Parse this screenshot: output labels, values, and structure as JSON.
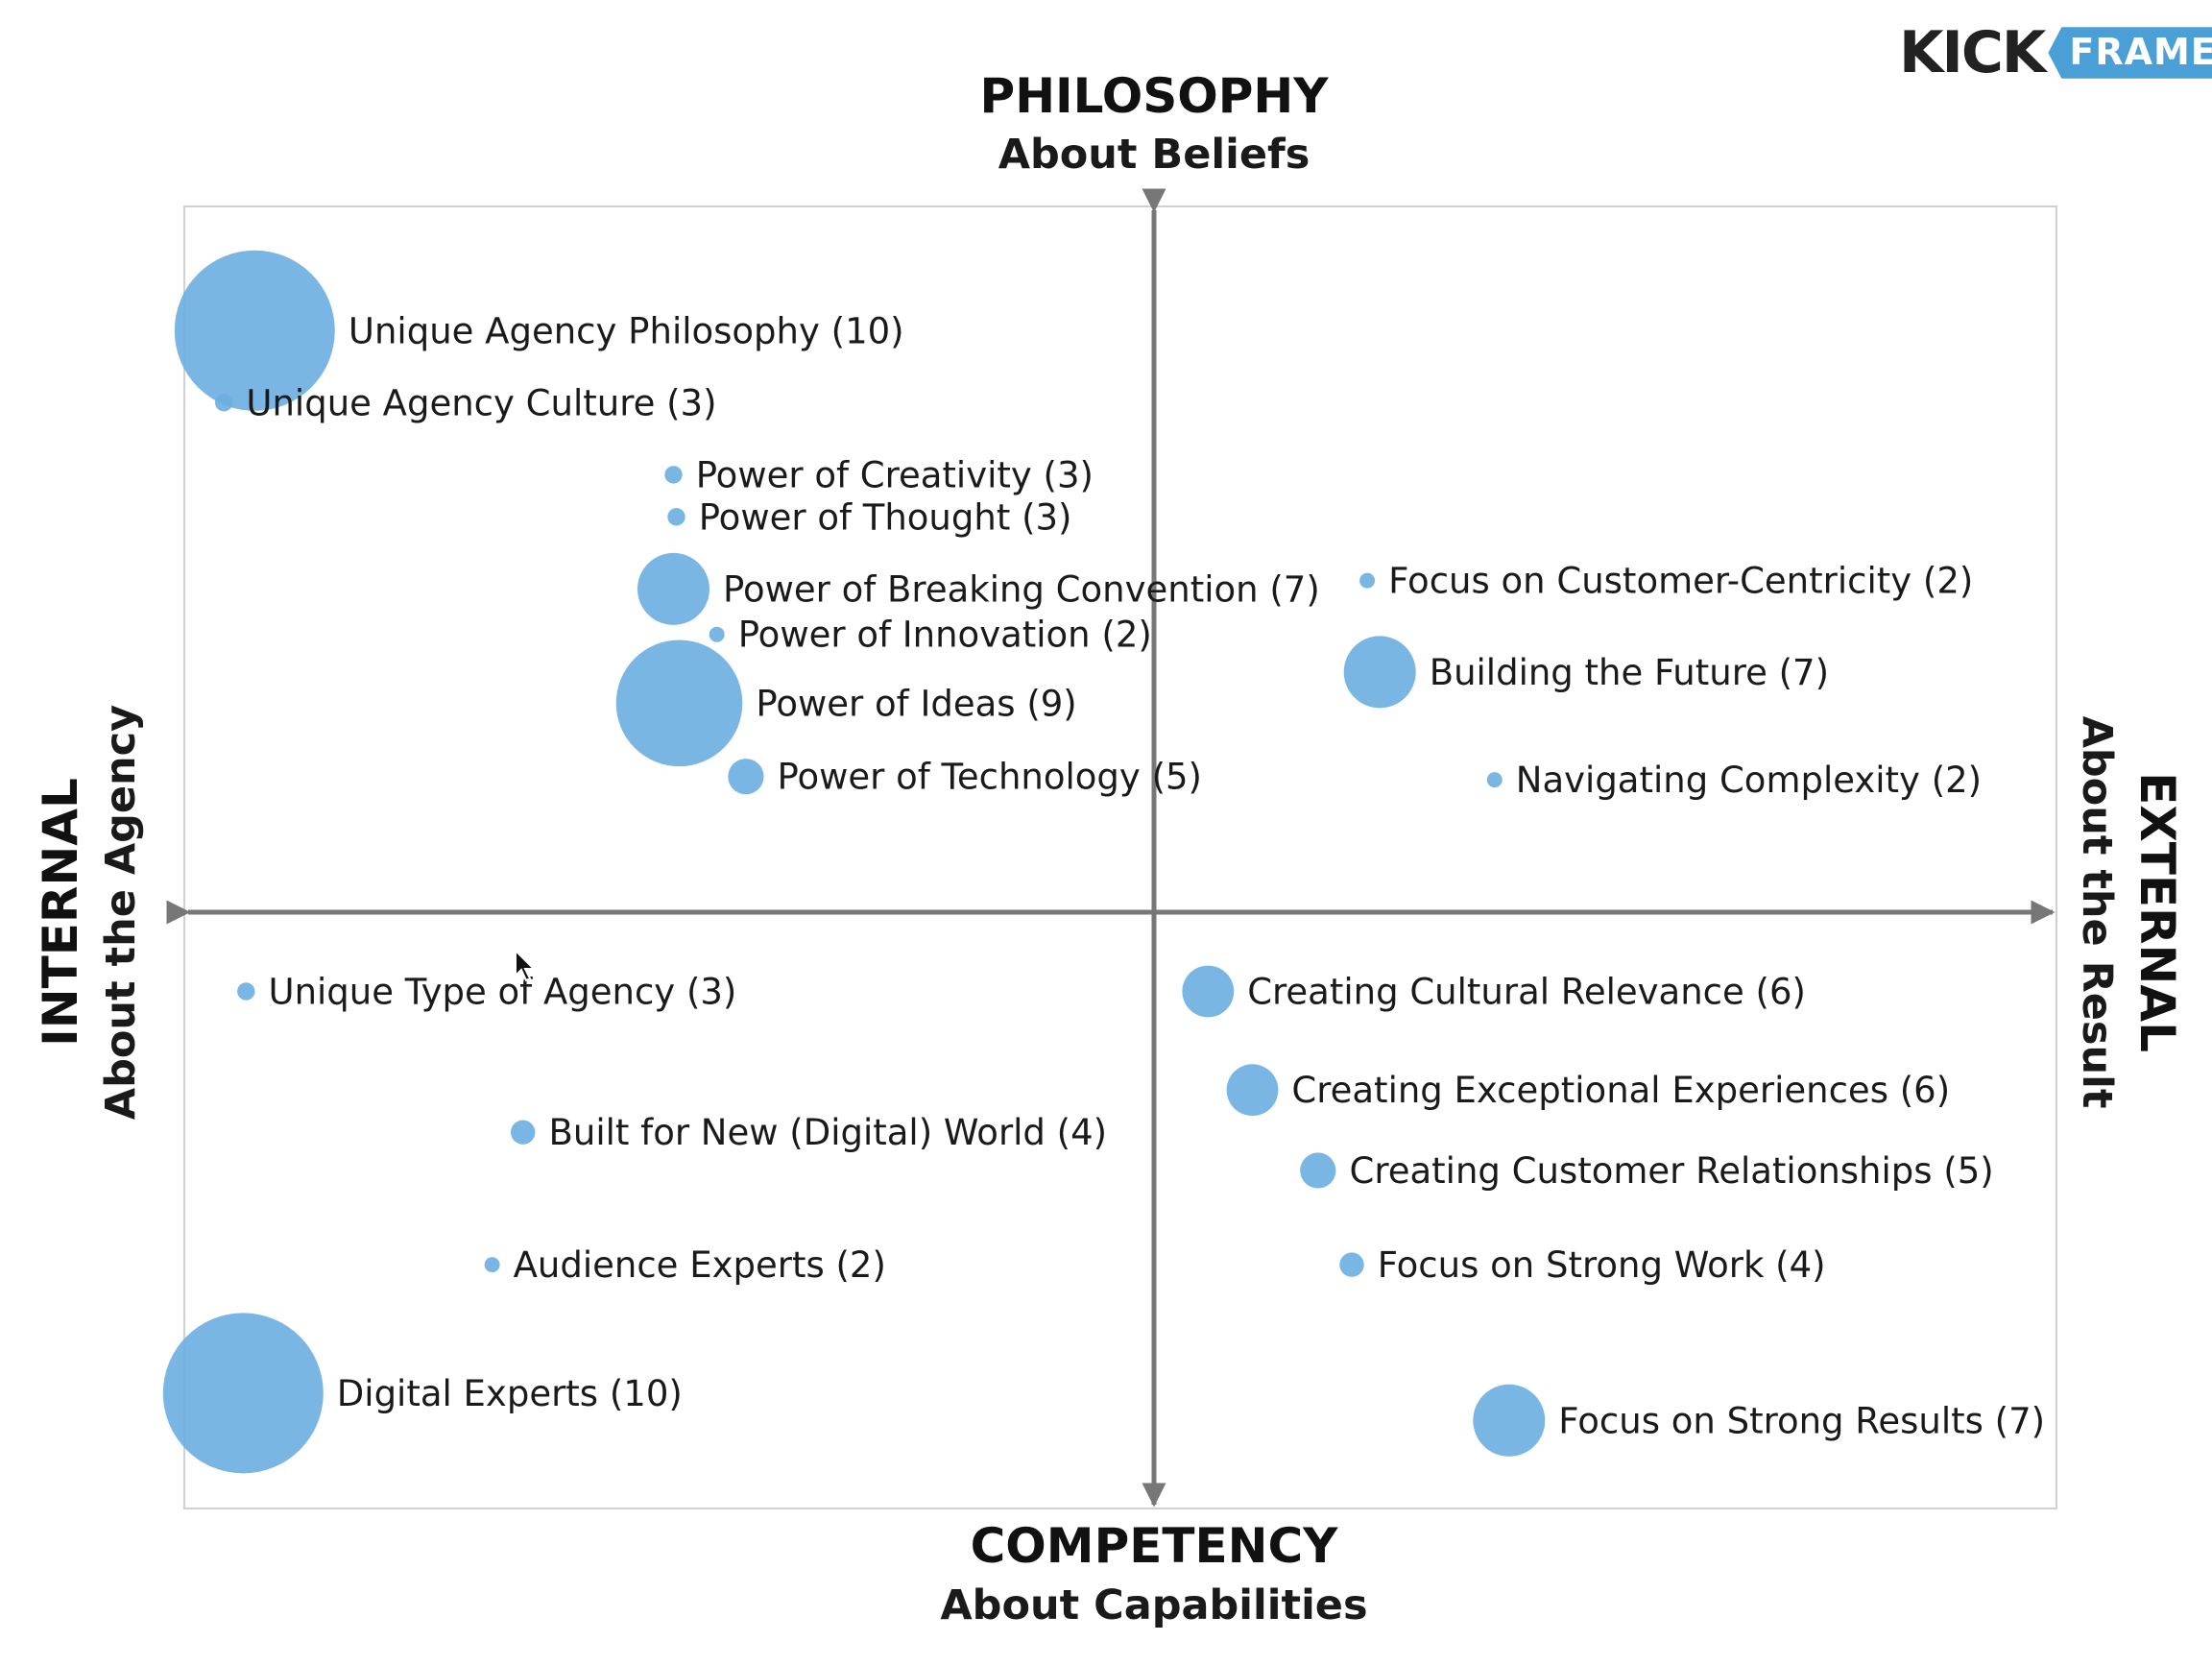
{
  "logo": {
    "part1": "KICK",
    "part2": "FRAME"
  },
  "axes": {
    "top": {
      "title": "PHILOSOPHY",
      "subtitle": "About Beliefs"
    },
    "bottom": {
      "title": "COMPETENCY",
      "subtitle": "About Capabilities"
    },
    "left": {
      "title": "INTERNAL",
      "subtitle": "About the Agency"
    },
    "right": {
      "title": "EXTERNAL",
      "subtitle": "About the Result"
    }
  },
  "colors": {
    "bubble": "#6aaee0",
    "axis": "#777777",
    "frame": "#d0d0d0"
  },
  "chart_data": {
    "type": "scatter",
    "title": "",
    "xlabel": "INTERNAL ↔ EXTERNAL",
    "ylabel": "COMPETENCY ↔ PHILOSOPHY",
    "xlim": [
      -100,
      100
    ],
    "ylim": [
      -100,
      100
    ],
    "grid": false,
    "size_field": "count",
    "points": [
      {
        "label": "Unique Agency Philosophy (10)",
        "x": -93.2,
        "y": 89.6,
        "count": 10
      },
      {
        "label": "Unique Agency Culture (3)",
        "x": -96.4,
        "y": 78.5,
        "count": 3
      },
      {
        "label": "Power of Creativity (3)",
        "x": -49.8,
        "y": 67.4,
        "count": 3
      },
      {
        "label": "Power of Thought (3)",
        "x": -49.5,
        "y": 60.9,
        "count": 3
      },
      {
        "label": "Power of Breaking Convention (7)",
        "x": -49.8,
        "y": 49.8,
        "count": 7
      },
      {
        "label": "Power of Innovation (2)",
        "x": -45.3,
        "y": 42.8,
        "count": 2
      },
      {
        "label": "Power of Ideas (9)",
        "x": -49.2,
        "y": 32.2,
        "count": 9
      },
      {
        "label": "Power of Technology (5)",
        "x": -42.3,
        "y": 20.9,
        "count": 5
      },
      {
        "label": "Focus on Customer-Centricity (2)",
        "x": 22.1,
        "y": 51.1,
        "count": 2
      },
      {
        "label": "Building the Future (7)",
        "x": 23.4,
        "y": 37.0,
        "count": 7
      },
      {
        "label": "Navigating Complexity (2)",
        "x": 35.3,
        "y": 20.4,
        "count": 2
      },
      {
        "label": "Unique Type of Agency (3)",
        "x": -94.1,
        "y": -12.2,
        "count": 3
      },
      {
        "label": "Built for New (Digital) World (4)",
        "x": -65.4,
        "y": -33.9,
        "count": 4
      },
      {
        "label": "Audience Experts (2)",
        "x": -68.6,
        "y": -54.3,
        "count": 2
      },
      {
        "label": "Digital Experts (10)",
        "x": -94.4,
        "y": -74.1,
        "count": 10
      },
      {
        "label": "Creating Cultural Relevance (6)",
        "x": 5.6,
        "y": -12.2,
        "count": 6
      },
      {
        "label": "Creating Exceptional Experiences (6)",
        "x": 10.2,
        "y": -27.4,
        "count": 6
      },
      {
        "label": "Creating Customer Relationships (5)",
        "x": 17.0,
        "y": -39.8,
        "count": 5
      },
      {
        "label": "Focus on Strong Work (4)",
        "x": 20.5,
        "y": -54.3,
        "count": 4
      },
      {
        "label": "Focus on Strong Results (7)",
        "x": 36.8,
        "y": -78.3,
        "count": 7
      }
    ]
  }
}
